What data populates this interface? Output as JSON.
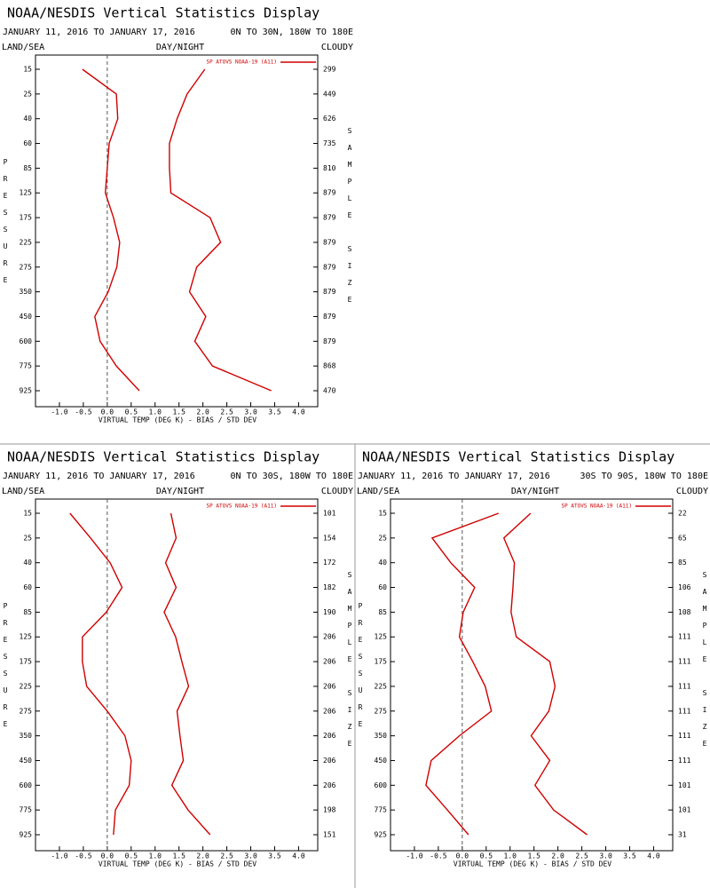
{
  "chart_data": [
    {
      "type": "line",
      "title": "NOAA/NESDIS Vertical Statistics Display",
      "date_range": "JANUARY 11, 2016 TO JANUARY 17, 2016",
      "region": "0N TO 30N, 180W TO 180E",
      "header_labels": [
        "LAND/SEA",
        "DAY/NIGHT",
        "CLOUDY"
      ],
      "ylabel": "PRESSURE",
      "y2label": "SAMPLE SIZE",
      "xlabel": "VIRTUAL TEMP (DEG K) - BIAS / STD DEV",
      "categories": [
        15,
        25,
        40,
        60,
        85,
        125,
        175,
        225,
        275,
        350,
        450,
        600,
        775,
        925
      ],
      "sample_sizes": [
        299,
        449,
        626,
        735,
        810,
        879,
        879,
        879,
        879,
        879,
        879,
        879,
        868,
        470
      ],
      "series": [
        {
          "name": "SP ATOVS NOAA-19 (A11)",
          "color": "#d00000",
          "values": [
            -0.52,
            0.19,
            0.22,
            0.04,
            0,
            -0.04,
            0.13,
            0.26,
            0.2,
            0.02,
            -0.26,
            -0.15,
            0.19,
            0.67
          ]
        },
        {
          "color": "#d00000",
          "values": [
            2.04,
            1.67,
            1.46,
            1.3,
            1.3,
            1.33,
            2.15,
            2.37,
            1.87,
            1.72,
            2.06,
            1.83,
            2.2,
            3.43
          ]
        }
      ],
      "xlim": [
        -1.5,
        4.4
      ],
      "xticks": [
        {
          "value": -1,
          "label": "-1.0"
        },
        {
          "value": -0.5,
          "label": "-0.5"
        },
        {
          "value": 0,
          "label": "0.0"
        },
        {
          "value": 0.5,
          "label": "0.5"
        },
        {
          "value": 1,
          "label": "1.0"
        },
        {
          "value": 1.5,
          "label": "1.5"
        },
        {
          "value": 2,
          "label": "2.0"
        },
        {
          "value": 2.5,
          "label": "2.5"
        },
        {
          "value": 3,
          "label": "3.0"
        },
        {
          "value": 3.5,
          "label": "3.5"
        },
        {
          "value": 4,
          "label": "4.0"
        }
      ],
      "legend": "upper right"
    },
    {
      "type": "line",
      "title": "NOAA/NESDIS Vertical Statistics Display",
      "date_range": "JANUARY 11, 2016 TO JANUARY 17, 2016",
      "region": "0N TO 30S, 180W TO 180E",
      "header_labels": [
        "LAND/SEA",
        "DAY/NIGHT",
        "CLOUDY"
      ],
      "ylabel": "PRESSURE",
      "y2label": "SAMPLE SIZE",
      "xlabel": "VIRTUAL TEMP (DEG K) - BIAS / STD DEV",
      "categories": [
        15,
        25,
        40,
        60,
        85,
        125,
        175,
        225,
        275,
        350,
        450,
        600,
        775,
        925
      ],
      "sample_sizes": [
        101,
        154,
        172,
        182,
        190,
        206,
        206,
        206,
        206,
        206,
        206,
        206,
        198,
        151
      ],
      "series": [
        {
          "name": "SP ATOVS NOAA-19 (A11)",
          "color": "#d00000",
          "values": [
            -0.78,
            -0.35,
            0.06,
            0.31,
            -0.02,
            -0.52,
            -0.52,
            -0.43,
            0,
            0.37,
            0.5,
            0.46,
            0.17,
            0.13
          ]
        },
        {
          "color": "#d00000",
          "values": [
            1.33,
            1.44,
            1.22,
            1.44,
            1.19,
            1.43,
            1.56,
            1.7,
            1.46,
            1.52,
            1.59,
            1.35,
            1.69,
            2.15
          ]
        }
      ],
      "xlim": [
        -1.5,
        4.4
      ],
      "xticks": [
        {
          "value": -1,
          "label": "-1.0"
        },
        {
          "value": -0.5,
          "label": "-0.5"
        },
        {
          "value": 0,
          "label": "0.0"
        },
        {
          "value": 0.5,
          "label": "0.5"
        },
        {
          "value": 1,
          "label": "1.0"
        },
        {
          "value": 1.5,
          "label": "1.5"
        },
        {
          "value": 2,
          "label": "2.0"
        },
        {
          "value": 2.5,
          "label": "2.5"
        },
        {
          "value": 3,
          "label": "3.0"
        },
        {
          "value": 3.5,
          "label": "3.5"
        },
        {
          "value": 4,
          "label": "4.0"
        }
      ],
      "legend": "upper right"
    },
    {
      "type": "line",
      "title": "NOAA/NESDIS Vertical Statistics Display",
      "date_range": "JANUARY 11, 2016 TO JANUARY 17, 2016",
      "region": "30S TO 90S, 180W TO 180E",
      "header_labels": [
        "LAND/SEA",
        "DAY/NIGHT",
        "CLOUDY"
      ],
      "ylabel": "PRESSURE",
      "y2label": "SAMPLE SIZE",
      "xlabel": "VIRTUAL TEMP (DEG K) - BIAS / STD DEV",
      "categories": [
        15,
        25,
        40,
        60,
        85,
        125,
        175,
        225,
        275,
        350,
        450,
        600,
        775,
        925
      ],
      "sample_sizes": [
        22,
        65,
        85,
        106,
        108,
        111,
        111,
        111,
        111,
        111,
        111,
        101,
        101,
        31
      ],
      "series": [
        {
          "name": "SP ATOVS NOAA-19 (A11)",
          "color": "#d00000",
          "values": [
            0.76,
            -0.63,
            -0.24,
            0.26,
            0.02,
            -0.06,
            0.22,
            0.48,
            0.61,
            -0.06,
            -0.65,
            -0.76,
            -0.31,
            0.13
          ]
        },
        {
          "color": "#d00000",
          "values": [
            1.43,
            0.87,
            1.09,
            1.06,
            1.02,
            1.13,
            1.83,
            1.94,
            1.81,
            1.44,
            1.83,
            1.52,
            1.91,
            2.61
          ]
        }
      ],
      "xlim": [
        -1.5,
        4.4
      ],
      "xticks": [
        {
          "value": -1,
          "label": "-1.0"
        },
        {
          "value": -0.5,
          "label": "-0.5"
        },
        {
          "value": 0,
          "label": "0.0"
        },
        {
          "value": 0.5,
          "label": "0.5"
        },
        {
          "value": 1,
          "label": "1.0"
        },
        {
          "value": 1.5,
          "label": "1.5"
        },
        {
          "value": 2,
          "label": "2.0"
        },
        {
          "value": 2.5,
          "label": "2.5"
        },
        {
          "value": 3,
          "label": "3.0"
        },
        {
          "value": 3.5,
          "label": "3.5"
        },
        {
          "value": 4,
          "label": "4.0"
        }
      ],
      "legend": "upper right"
    }
  ]
}
